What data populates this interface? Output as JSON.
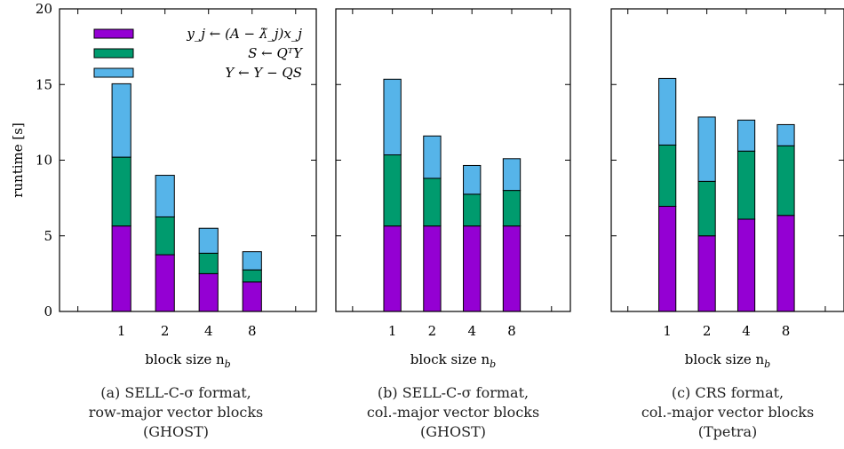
{
  "legend": {
    "items": [
      {
        "label": "y_j ← (A − λ̃_j)x_j",
        "color": "#9400d3"
      },
      {
        "label": "S ← QᵀY",
        "color": "#009b6e"
      },
      {
        "label": "Y ← Y − QS",
        "color": "#56b4e9"
      }
    ]
  },
  "chart_data": [
    {
      "type": "bar",
      "stacked": true,
      "categories": [
        "1",
        "2",
        "4",
        "8"
      ],
      "series": [
        {
          "name": "y_j ← (A − λ̃_j)x_j",
          "values": [
            5.65,
            3.75,
            2.5,
            1.95
          ]
        },
        {
          "name": "S ← QᵀY",
          "values": [
            4.55,
            2.5,
            1.35,
            0.8
          ]
        },
        {
          "name": "Y ← Y − QS",
          "values": [
            4.85,
            2.75,
            1.65,
            1.2
          ]
        }
      ],
      "ylim": [
        0,
        20
      ],
      "yticks": [
        "0",
        "5",
        "10",
        "15",
        "20"
      ],
      "ylabel": "runtime [s]",
      "xlabel": "block size n_b",
      "caption": [
        "(a) SELL-C-σ format,",
        "row-major vector blocks",
        "(GHOST)"
      ]
    },
    {
      "type": "bar",
      "stacked": true,
      "categories": [
        "1",
        "2",
        "4",
        "8"
      ],
      "series": [
        {
          "name": "y_j ← (A − λ̃_j)x_j",
          "values": [
            5.65,
            5.65,
            5.65,
            5.65
          ]
        },
        {
          "name": "S ← QᵀY",
          "values": [
            4.7,
            3.15,
            2.1,
            2.35
          ]
        },
        {
          "name": "Y ← Y − QS",
          "values": [
            5.0,
            2.8,
            1.9,
            2.1
          ]
        }
      ],
      "ylim": [
        0,
        20
      ],
      "ylabel": "",
      "xlabel": "block size n_b",
      "caption": [
        "(b) SELL-C-σ format,",
        "col.-major vector blocks",
        "(GHOST)"
      ]
    },
    {
      "type": "bar",
      "stacked": true,
      "categories": [
        "1",
        "2",
        "4",
        "8"
      ],
      "series": [
        {
          "name": "y_j ← (A − λ̃_j)x_j",
          "values": [
            6.95,
            5.0,
            6.1,
            6.35
          ]
        },
        {
          "name": "S ← QᵀY",
          "values": [
            4.05,
            3.6,
            4.5,
            4.6
          ]
        },
        {
          "name": "Y ← Y − QS",
          "values": [
            4.4,
            4.25,
            2.05,
            1.4
          ]
        }
      ],
      "ylim": [
        0,
        20
      ],
      "ylabel": "",
      "xlabel": "block size n_b",
      "caption": [
        "(c) CRS format,",
        "col.-major vector blocks",
        "(Tpetra)"
      ]
    }
  ]
}
